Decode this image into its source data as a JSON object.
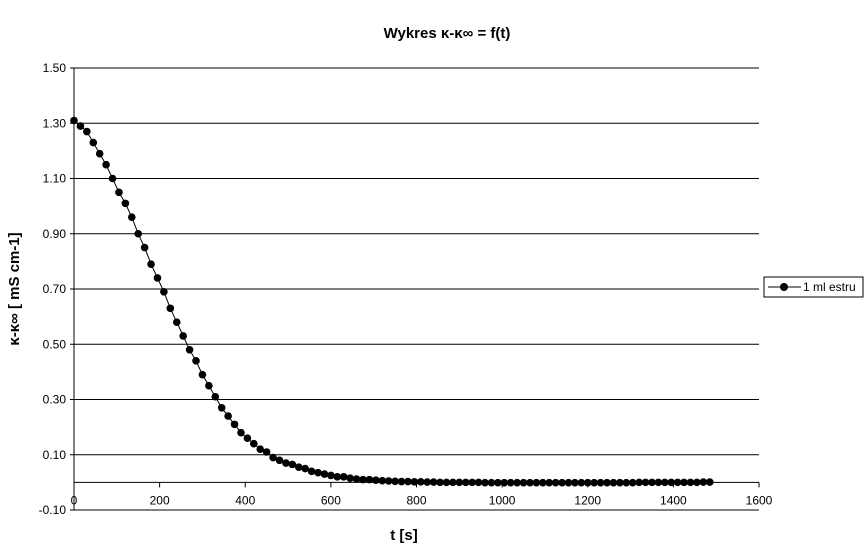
{
  "chart_data": {
    "type": "scatter",
    "title": "Wykres κ-κ∞ = f(t)",
    "xlabel": "t [s]",
    "ylabel": "κ-κ∞ [ mS cm-1]",
    "xlim": [
      0,
      1600
    ],
    "ylim": [
      -0.1,
      1.5
    ],
    "xticks": [
      "0",
      "200",
      "400",
      "600",
      "800",
      "1000",
      "1200",
      "1400",
      "1600"
    ],
    "yticks": [
      "-0.10",
      "0.10",
      "0.30",
      "0.50",
      "0.70",
      "0.90",
      "1.10",
      "1.30",
      "1.50"
    ],
    "grid": "horizontal",
    "legend_position": "right",
    "series": [
      {
        "name": "1 ml estru",
        "color": "#000000",
        "marker": "circle",
        "x": [
          0,
          15,
          30,
          45,
          60,
          75,
          90,
          105,
          120,
          135,
          150,
          165,
          180,
          195,
          210,
          225,
          240,
          255,
          270,
          285,
          300,
          315,
          330,
          345,
          360,
          375,
          390,
          405,
          420,
          435,
          450,
          465,
          480,
          495,
          510,
          525,
          540,
          555,
          570,
          585,
          600,
          615,
          630,
          645,
          660,
          675,
          690,
          705,
          720,
          735,
          750,
          765,
          780,
          795,
          810,
          825,
          840,
          855,
          870,
          885,
          900,
          915,
          930,
          945,
          960,
          975,
          990,
          1005,
          1020,
          1035,
          1050,
          1065,
          1080,
          1095,
          1110,
          1125,
          1140,
          1155,
          1170,
          1185,
          1200,
          1215,
          1230,
          1245,
          1260,
          1275,
          1290,
          1305,
          1320,
          1335,
          1350,
          1365,
          1380,
          1395,
          1410,
          1425,
          1440,
          1455,
          1470,
          1485
        ],
        "y": [
          1.31,
          1.29,
          1.27,
          1.23,
          1.19,
          1.15,
          1.1,
          1.05,
          1.01,
          0.96,
          0.9,
          0.85,
          0.79,
          0.74,
          0.69,
          0.63,
          0.58,
          0.53,
          0.48,
          0.44,
          0.39,
          0.35,
          0.31,
          0.27,
          0.24,
          0.21,
          0.18,
          0.16,
          0.14,
          0.12,
          0.11,
          0.09,
          0.08,
          0.07,
          0.065,
          0.055,
          0.05,
          0.04,
          0.035,
          0.03,
          0.025,
          0.02,
          0.02,
          0.015,
          0.012,
          0.01,
          0.01,
          0.008,
          0.006,
          0.005,
          0.004,
          0.003,
          0.003,
          0.002,
          0.002,
          0.001,
          0.001,
          0.0,
          0.0,
          0.0,
          0.0,
          0.0,
          0.0,
          0.0,
          -0.001,
          -0.001,
          -0.001,
          -0.001,
          -0.001,
          -0.001,
          -0.001,
          -0.001,
          -0.001,
          -0.001,
          -0.001,
          -0.001,
          -0.001,
          -0.001,
          -0.001,
          -0.001,
          -0.001,
          -0.001,
          -0.001,
          -0.001,
          -0.001,
          -0.001,
          -0.001,
          -0.001,
          0.0,
          0.0,
          0.0,
          0.0,
          0.0,
          0.0,
          0.0,
          0.0,
          0.0,
          0.0,
          0.001,
          0.001
        ]
      }
    ]
  }
}
